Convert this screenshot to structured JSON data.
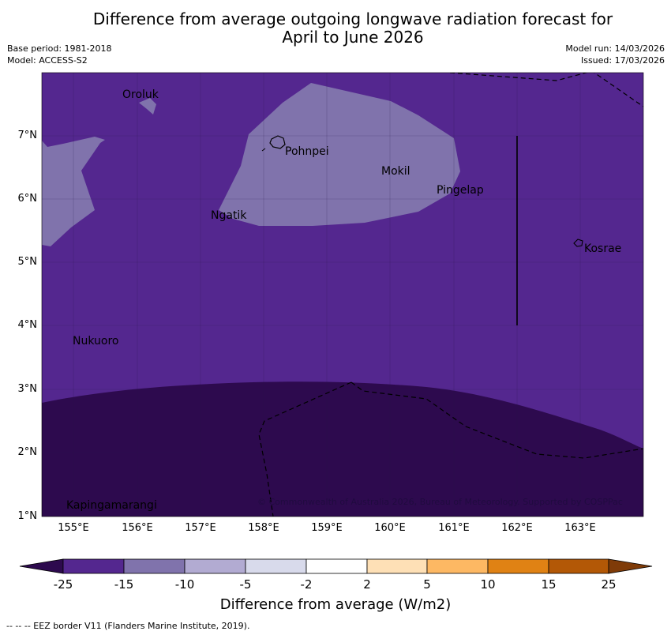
{
  "title_line1": "Difference from average outgoing longwave radiation forecast for",
  "title_line2": "April to June 2026",
  "base_period": "Base period: 1981-2018",
  "model": "Model: ACCESS-S2",
  "model_run": "Model run: 14/03/2026",
  "issued": "Issued: 17/03/2026",
  "lat_labels": [
    "7°N",
    "6°N",
    "5°N",
    "4°N",
    "3°N",
    "2°N",
    "1°N"
  ],
  "lon_labels": [
    "155°E",
    "156°E",
    "157°E",
    "158°E",
    "159°E",
    "160°E",
    "161°E",
    "162°E",
    "163°E"
  ],
  "places": {
    "oroluk": "Oroluk",
    "pohnpei": "Pohnpei",
    "mokil": "Mokil",
    "pingelap": "Pingelap",
    "ngatik": "Ngatik",
    "kosrae": "Kosrae",
    "nukuoro": "Nukuoro",
    "kapingamarangi": "Kapingamarangi"
  },
  "copyright": "© Commonwealth of Australia 2026, Bureau of Meteorology. Supported by COSPPac",
  "colorbar": {
    "ticks": [
      "-25",
      "-15",
      "-10",
      "-5",
      "-2",
      "2",
      "5",
      "10",
      "15",
      "25"
    ],
    "colors": [
      "#2d0a4e",
      "#54278f",
      "#8073ac",
      "#b2abd2",
      "#d8daeb",
      "#ffffff",
      "#fee0b6",
      "#fdb863",
      "#e08214",
      "#b35806",
      "#7f3b08"
    ],
    "label": "Difference from average (W/m2)"
  },
  "footnote": "--  --  -- EEZ border V11 (Flanders Marine Institute, 2019)."
}
